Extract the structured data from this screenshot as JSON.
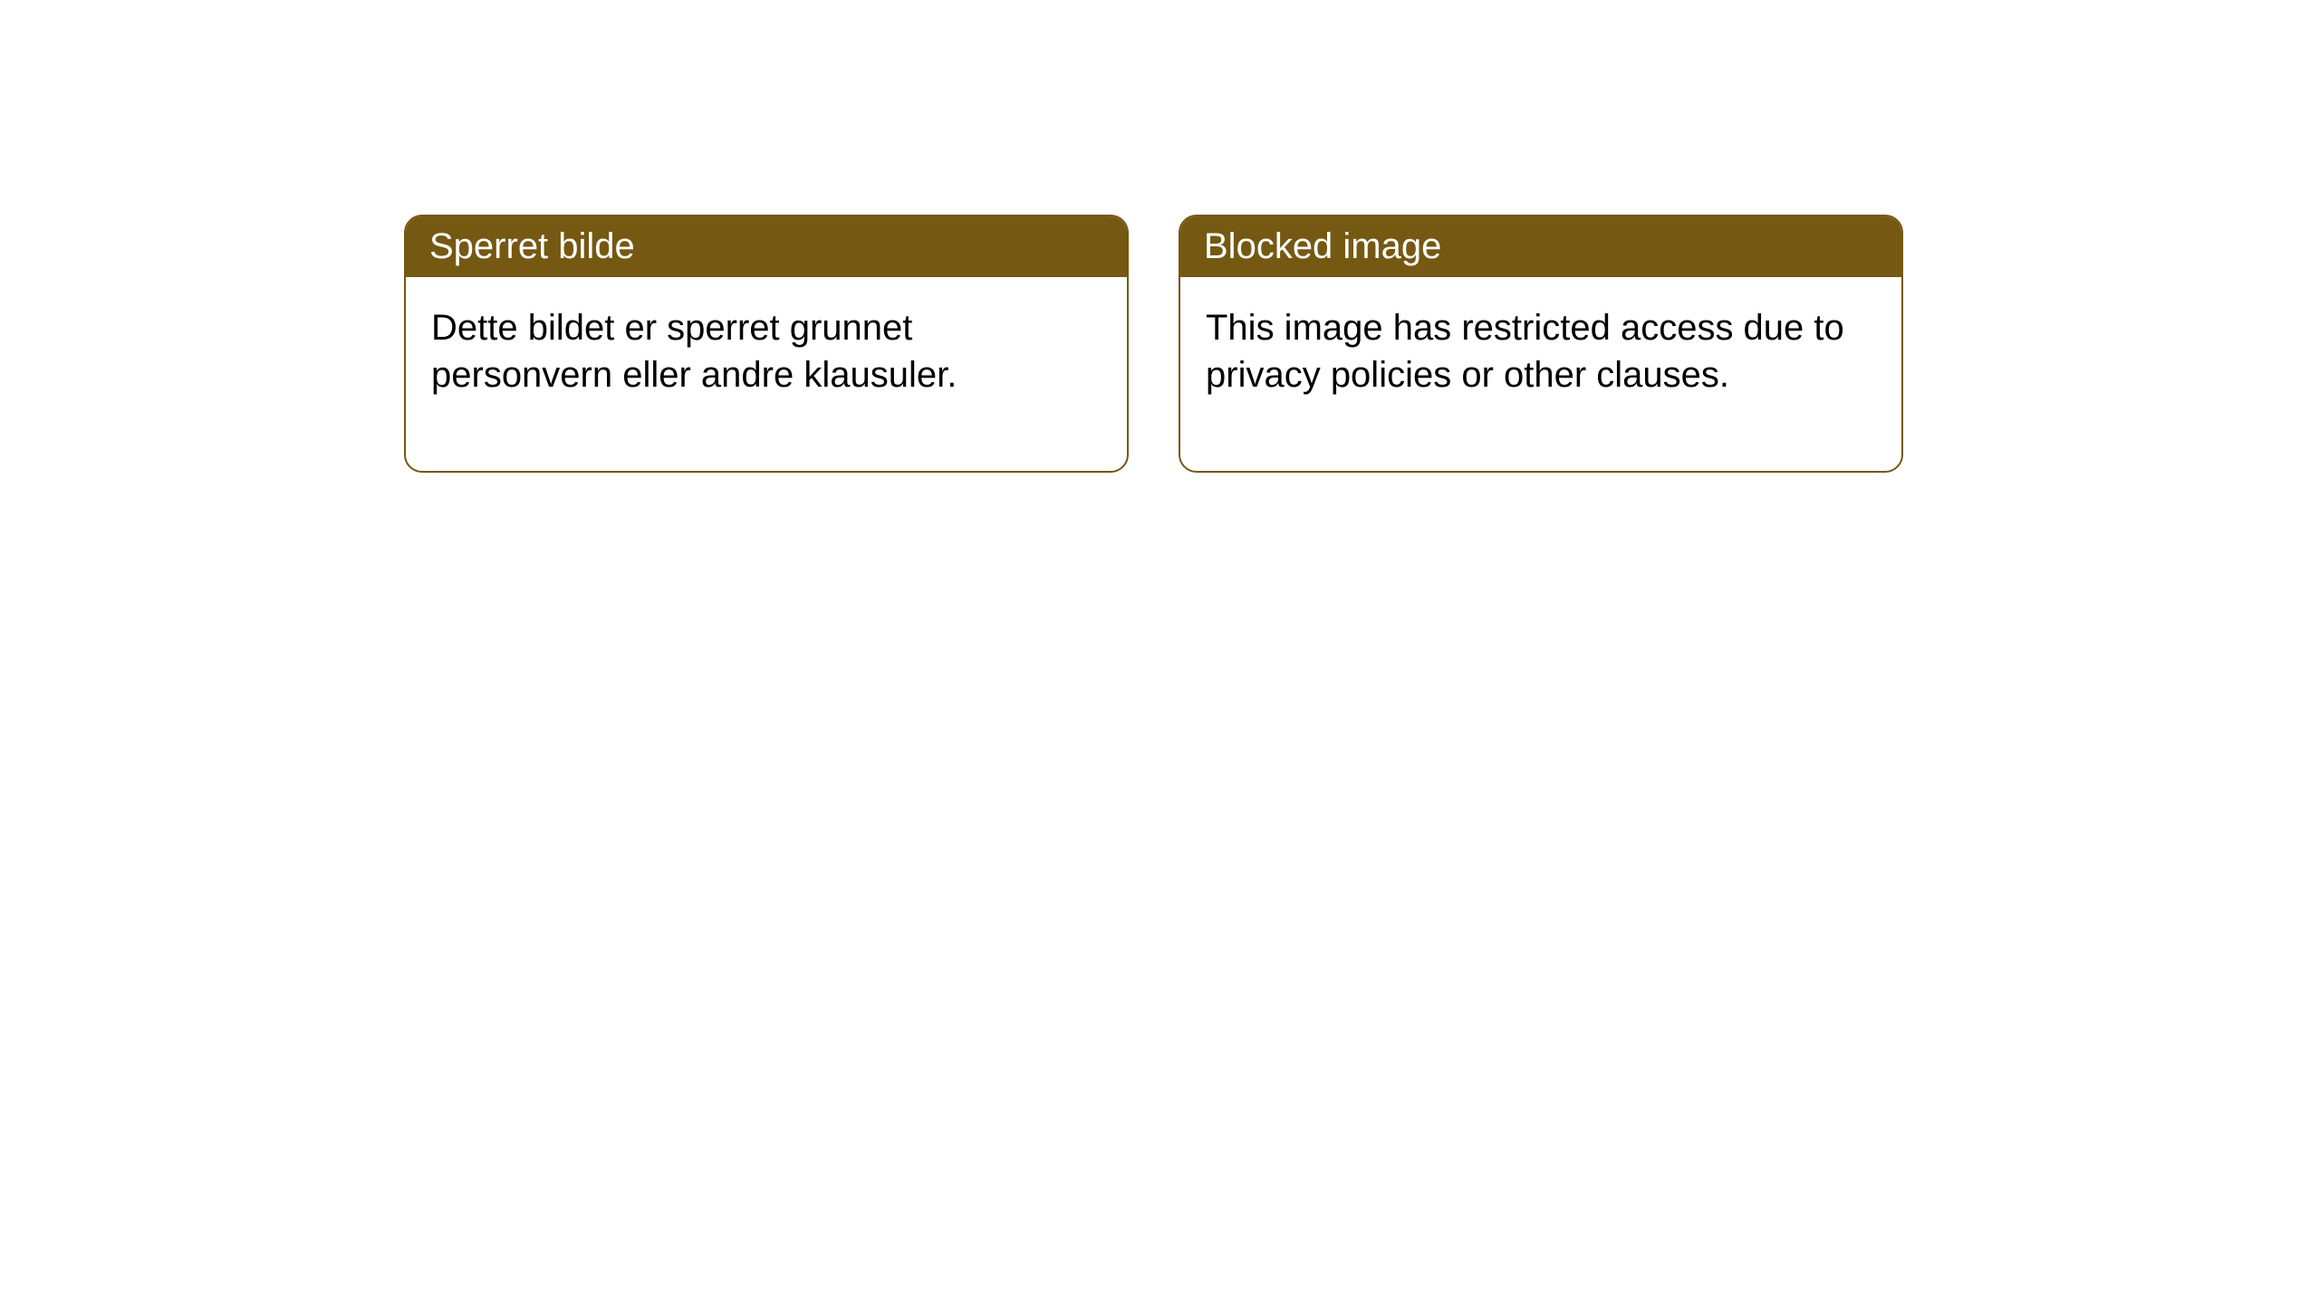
{
  "cards": [
    {
      "title": "Sperret bilde",
      "body": "Dette bildet er sperret grunnet personvern eller andre klausuler."
    },
    {
      "title": "Blocked image",
      "body": "This image has restricted access due to privacy policies or other clauses."
    }
  ],
  "style": {
    "header_bg": "#755811",
    "header_text": "#ffffff",
    "border_color": "#755811",
    "body_text": "#000000",
    "body_bg": "#ffffff",
    "border_width": 2,
    "border_radius": 20,
    "title_fontsize": 40,
    "body_fontsize": 40
  }
}
